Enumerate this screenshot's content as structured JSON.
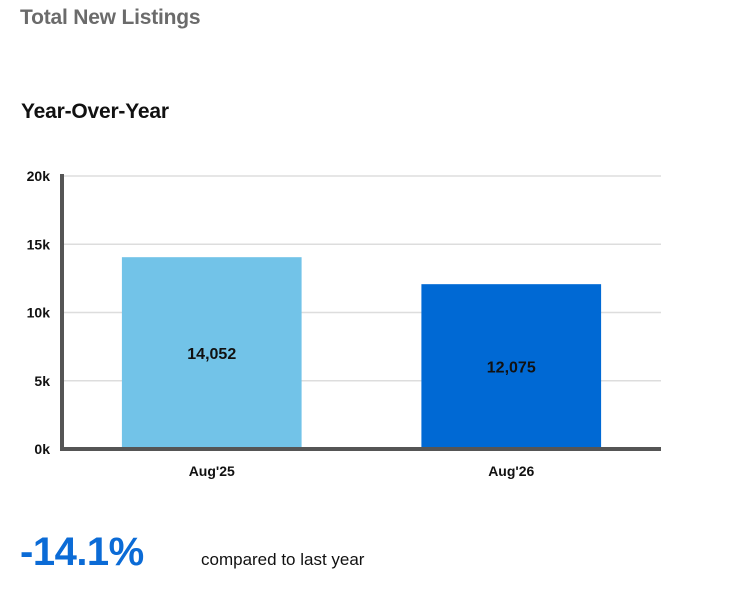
{
  "header": {
    "section_title": "Total New Listings"
  },
  "chart_data": {
    "type": "bar",
    "title": "Year-Over-Year",
    "categories": [
      "Aug'25",
      "Aug'26"
    ],
    "values": [
      14052,
      12075
    ],
    "value_labels": [
      "14,052",
      "12,075"
    ],
    "colors": [
      "#72c3e8",
      "#0069d4"
    ],
    "ylim": [
      0,
      20000
    ],
    "yticks": [
      0,
      5000,
      10000,
      15000,
      20000
    ],
    "ytick_labels": [
      "0k",
      "5k",
      "10k",
      "15k",
      "20k"
    ],
    "xlabel": "",
    "ylabel": "",
    "grid": true,
    "legend": "none"
  },
  "summary": {
    "change": "-14.1%",
    "caption": "compared to last year",
    "change_color": "#0b6bd6"
  }
}
